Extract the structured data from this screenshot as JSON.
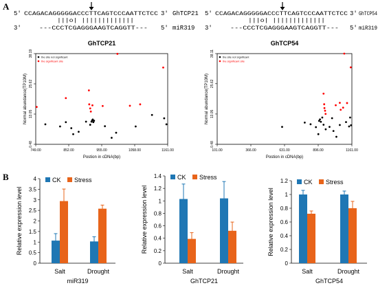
{
  "panel_a": {
    "label": "A",
    "alignments": [
      {
        "target_prefix": "5'",
        "target_seq": "CCAGACAGGGGGACCCTTCAGTCCCAATTCTCC",
        "target_suffix": "3'",
        "target_name": "GhTCP21",
        "pairing": "|||o| |||||||||||||",
        "mirna_prefix": "3'",
        "mirna_seq": "---CCCTCGAGGGAAGTCAGGTT---",
        "mirna_suffix": "5'",
        "mirna_name": "miR319"
      },
      {
        "target_prefix": "5'",
        "target_seq": "CCAGACAGGGGGACCCTTCAGTCCCAATTCTCC",
        "target_suffix": "3'",
        "target_name": "GhTCP54",
        "pairing": "|||o| |||||||||||||",
        "mirna_prefix": "3'",
        "mirna_seq": "---CCCTCGAGGGAAGTCAGGTT---",
        "mirna_suffix": "5'",
        "mirna_name": "miR319"
      }
    ]
  },
  "panel_b": {
    "label": "B"
  },
  "colors": {
    "ck": "#1f77b4",
    "stress": "#e8641a",
    "significant": "#ff0000",
    "not_significant": "#000000"
  },
  "chart_data": [
    {
      "type": "scatter",
      "title": "GhTCP21",
      "xlabel": "Postion in cDNA(bp)",
      "ylabel": "Normal abundance(TP10M)",
      "xlim": [
        749,
        1161
      ],
      "ylim": [
        0.48,
        38.19
      ],
      "xticks": [
        "749.00",
        "852.00",
        "955.00",
        "1058.00",
        "1161.00"
      ],
      "yticks": [
        "0.48",
        "13.05",
        "25.62",
        "38.19"
      ],
      "legend": [
        "the site not significant",
        "the significant site"
      ],
      "series": [
        {
          "name": "the site not significant",
          "x": [
            779,
            825,
            843,
            860,
            866,
            883,
            906,
            919,
            923,
            925,
            927,
            929,
            931,
            965,
            986,
            1000,
            1061,
            1112,
            1150,
            1157
          ],
          "y": [
            8.8,
            7.9,
            9.7,
            7.2,
            4.7,
            5.7,
            9.9,
            8.6,
            9.9,
            10.4,
            10.8,
            9.7,
            10.3,
            8.0,
            3.2,
            5.3,
            7.9,
            12.7,
            11.3,
            8.8
          ]
        },
        {
          "name": "the significant site",
          "x": [
            752,
            843,
            915,
            916,
            919,
            921,
            926,
            958,
            1004,
            1043,
            1075,
            1147
          ],
          "y": [
            16.0,
            19.7,
            22.9,
            17.1,
            15.4,
            14.1,
            16.7,
            16.4,
            38.1,
            16.5,
            17.1,
            32.4
          ]
        }
      ]
    },
    {
      "type": "scatter",
      "title": "GhTCP54",
      "xlabel": "Postion in cDNA(bp)",
      "ylabel": "Normal abundance(TP10M)",
      "xlim": [
        101,
        1161
      ],
      "ylim": [
        0.48,
        38.11
      ],
      "xticks": [
        "101.00",
        "366.00",
        "631.00",
        "896.00",
        "1161.00"
      ],
      "yticks": [
        "0.48",
        "13.05",
        "25.62",
        "38.11"
      ],
      "legend": [
        "the site not significant",
        "the significant site"
      ],
      "series": [
        {
          "name": "the site not significant",
          "x": [
            612,
            790,
            836,
            878,
            897,
            903,
            910,
            917,
            928,
            938,
            955,
            985,
            1005,
            1016,
            1039,
            1066,
            1115,
            1139,
            1147,
            1154
          ],
          "y": [
            7.7,
            9.5,
            8.8,
            7.6,
            4.7,
            10.2,
            10.8,
            9.8,
            11.6,
            8.6,
            6.7,
            7.7,
            11.3,
            6.0,
            3.6,
            8.5,
            9.7,
            7.9,
            11.6,
            8.4
          ]
        },
        {
          "name": "the significant site",
          "x": [
            938,
            943,
            945,
            950,
            954,
            1034,
            1066,
            1073,
            1092,
            1101,
            1123,
            1152
          ],
          "y": [
            21.5,
            17.1,
            15.5,
            14.4,
            13.1,
            16.7,
            17.7,
            14.8,
            15.7,
            38.1,
            17.6,
            32.4
          ]
        }
      ]
    },
    {
      "type": "bar",
      "title": "miR319",
      "xlabel": "",
      "ylabel": "Relative expression level",
      "categories": [
        "Salt",
        "Drought"
      ],
      "ylim": [
        0,
        4
      ],
      "yticks": [
        "0",
        "0.5",
        "1",
        "1.5",
        "2",
        "2.5",
        "3",
        "3.5",
        "4"
      ],
      "legend": [
        "CK",
        "Stress"
      ],
      "series": [
        {
          "name": "CK",
          "values": [
            1.07,
            1.03
          ],
          "errors": [
            0.33,
            0.22
          ]
        },
        {
          "name": "Stress",
          "values": [
            2.94,
            2.58
          ],
          "errors": [
            0.57,
            0.17
          ]
        }
      ]
    },
    {
      "type": "bar",
      "title": "GhTCP21",
      "xlabel": "",
      "ylabel": "Relative expression level",
      "categories": [
        "Salt",
        "Drought"
      ],
      "ylim": [
        0,
        1.4
      ],
      "yticks": [
        "0",
        "0.2",
        "0.4",
        "0.6",
        "0.8",
        "1",
        "1.2",
        "1.4"
      ],
      "legend": [
        "CK",
        "Stress"
      ],
      "series": [
        {
          "name": "CK",
          "values": [
            1.03,
            1.04
          ],
          "errors": [
            0.24,
            0.27
          ]
        },
        {
          "name": "Stress",
          "values": [
            0.39,
            0.52
          ],
          "errors": [
            0.1,
            0.14
          ]
        }
      ]
    },
    {
      "type": "bar",
      "title": "GhTCP54",
      "xlabel": "",
      "ylabel": "Relative expression level",
      "categories": [
        "Salt",
        "Drought"
      ],
      "ylim": [
        0,
        1.2
      ],
      "yticks": [
        "0",
        "0.2",
        "0.4",
        "0.6",
        "0.8",
        "1",
        "1.2"
      ],
      "legend": [
        "CK",
        "Stress"
      ],
      "series": [
        {
          "name": "CK",
          "values": [
            1.0,
            1.0
          ],
          "errors": [
            0.06,
            0.05
          ]
        },
        {
          "name": "Stress",
          "values": [
            0.72,
            0.8
          ],
          "errors": [
            0.04,
            0.1
          ]
        }
      ]
    }
  ]
}
